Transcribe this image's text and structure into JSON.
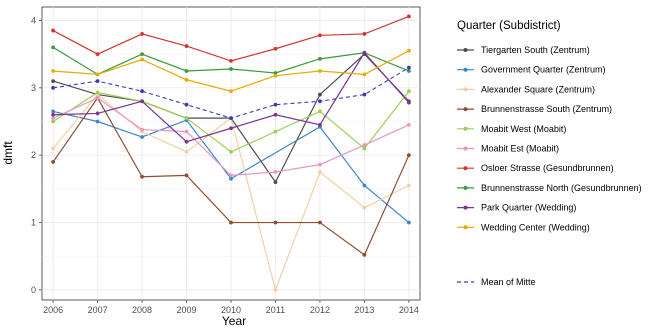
{
  "chart_data": {
    "type": "line",
    "xlabel": "Year",
    "ylabel": "dmft",
    "x": [
      2006,
      2007,
      2008,
      2009,
      2010,
      2011,
      2012,
      2013,
      2014
    ],
    "xlim": [
      2005.75,
      2014.25
    ],
    "ylim": [
      -0.15,
      4.2
    ],
    "yticks": [
      0,
      1,
      2,
      3,
      4
    ],
    "grid": true,
    "legend": {
      "title": "Quarter (Subdistrict)",
      "placement": "right"
    },
    "series": [
      {
        "name": "Tiergarten South (Zentrum)",
        "color": "#4d4d4d",
        "dash": "solid",
        "values": [
          3.1,
          2.9,
          2.8,
          2.55,
          2.55,
          1.6,
          2.9,
          3.5,
          2.8
        ]
      },
      {
        "name": "Government Quarter (Zentrum)",
        "color": "#3d86c6",
        "dash": "solid",
        "values": [
          2.65,
          2.5,
          2.27,
          2.52,
          1.65,
          null,
          2.42,
          1.55,
          1.0
        ]
      },
      {
        "name": "Alexander Square (Zentrum)",
        "color": "#f2d0a4",
        "dash": "solid",
        "values": [
          2.1,
          2.9,
          2.35,
          2.05,
          2.55,
          0.0,
          1.75,
          1.22,
          1.55
        ]
      },
      {
        "name": "Brunnenstrasse South (Zentrum)",
        "color": "#8c4f32",
        "dash": "solid",
        "values": [
          1.9,
          2.85,
          1.68,
          1.7,
          1.0,
          1.0,
          1.0,
          0.52,
          2.0
        ]
      },
      {
        "name": "Moabit West (Moabit)",
        "color": "#9ccf56",
        "dash": "solid",
        "values": [
          2.5,
          2.93,
          2.8,
          2.55,
          2.05,
          2.35,
          2.65,
          2.1,
          2.95
        ]
      },
      {
        "name": "Moabit Est (Moabit)",
        "color": "#e996c3",
        "dash": "solid",
        "values": [
          2.55,
          2.85,
          2.38,
          2.35,
          1.7,
          1.75,
          1.86,
          2.15,
          2.45
        ]
      },
      {
        "name": "Osloer Strasse (Gesundbrunnen)",
        "color": "#d2362f",
        "dash": "solid",
        "values": [
          3.85,
          3.5,
          3.8,
          3.62,
          3.4,
          3.58,
          3.78,
          3.8,
          4.06
        ]
      },
      {
        "name": "Brunnenstrasse North (Gesundbrunnen)",
        "color": "#3a9a3a",
        "dash": "solid",
        "values": [
          3.6,
          3.2,
          3.5,
          3.25,
          3.28,
          3.22,
          3.43,
          3.52,
          3.25
        ]
      },
      {
        "name": "Park Quarter (Wedding)",
        "color": "#7b3394",
        "dash": "solid",
        "values": [
          2.6,
          2.62,
          2.8,
          2.2,
          2.4,
          2.6,
          2.45,
          3.52,
          2.78
        ]
      },
      {
        "name": "Wedding Center (Wedding)",
        "color": "#e6ab02",
        "dash": "solid",
        "values": [
          3.25,
          3.2,
          3.42,
          3.12,
          2.95,
          3.18,
          3.25,
          3.2,
          3.55
        ]
      },
      {
        "name": "Mean of Mitte",
        "color": "#3b3bb8",
        "dash": "dashed",
        "values": [
          3.0,
          3.1,
          2.95,
          2.75,
          2.55,
          2.75,
          2.8,
          2.9,
          3.3
        ]
      }
    ]
  }
}
